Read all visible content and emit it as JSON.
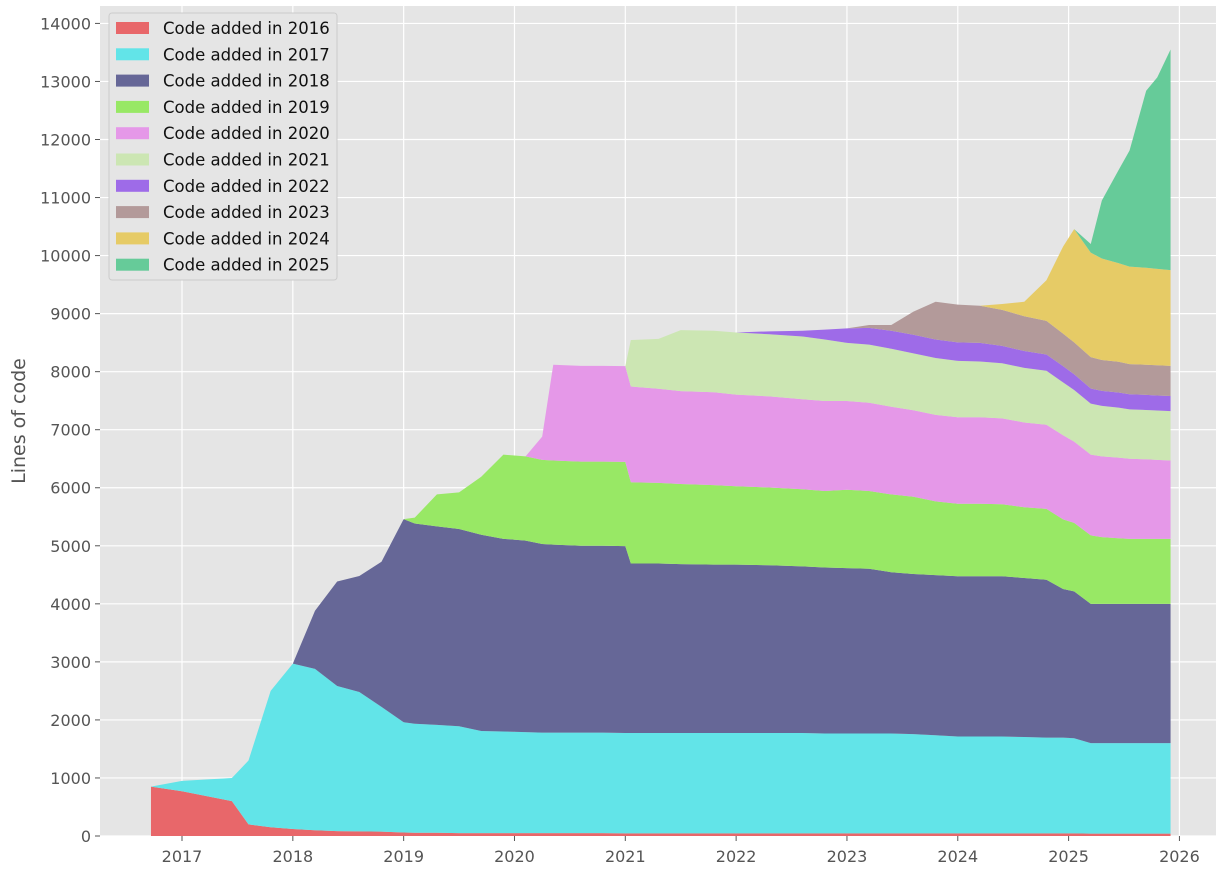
{
  "chart_data": {
    "type": "area",
    "stacked": true,
    "title": "",
    "xlabel": "",
    "ylabel": "Lines of code",
    "xlim": [
      2016.26,
      2026.33
    ],
    "ylim": [
      0,
      14300
    ],
    "x_ticks": [
      "2017",
      "2018",
      "2019",
      "2020",
      "2021",
      "2022",
      "2023",
      "2024",
      "2025",
      "2026"
    ],
    "y_ticks": [
      0,
      1000,
      2000,
      3000,
      4000,
      5000,
      6000,
      7000,
      8000,
      9000,
      10000,
      11000,
      12000,
      13000,
      14000
    ],
    "grid": true,
    "legend_position": "top-left",
    "background": "#e5e5e5",
    "x": [
      2016.72,
      2017.0,
      2017.45,
      2017.6,
      2017.8,
      2018.0,
      2018.2,
      2018.4,
      2018.6,
      2018.8,
      2019.0,
      2019.1,
      2019.3,
      2019.5,
      2019.7,
      2019.9,
      2020.1,
      2020.25,
      2020.35,
      2020.6,
      2020.8,
      2021.0,
      2021.05,
      2021.3,
      2021.5,
      2021.8,
      2022.0,
      2022.3,
      2022.6,
      2022.8,
      2023.0,
      2023.2,
      2023.4,
      2023.6,
      2023.8,
      2024.0,
      2024.2,
      2024.4,
      2024.6,
      2024.8,
      2024.95,
      2025.05,
      2025.2,
      2025.3,
      2025.45,
      2025.55,
      2025.7,
      2025.8,
      2025.92
    ],
    "series": [
      {
        "name": "Code added in 2016",
        "color": "#e8676a",
        "values": [
          850,
          770,
          600,
          200,
          150,
          120,
          100,
          85,
          80,
          75,
          60,
          55,
          55,
          50,
          50,
          50,
          50,
          50,
          50,
          50,
          50,
          45,
          45,
          45,
          45,
          45,
          45,
          45,
          45,
          45,
          45,
          45,
          45,
          45,
          45,
          45,
          45,
          45,
          45,
          45,
          45,
          45,
          40,
          40,
          40,
          40,
          40,
          40,
          40
        ]
      },
      {
        "name": "Code added in 2017",
        "color": "#62e4e8",
        "values": [
          0,
          180,
          400,
          1100,
          2350,
          2850,
          2780,
          2500,
          2400,
          2150,
          1900,
          1880,
          1860,
          1840,
          1760,
          1750,
          1740,
          1730,
          1730,
          1730,
          1730,
          1730,
          1730,
          1730,
          1730,
          1730,
          1730,
          1730,
          1730,
          1720,
          1720,
          1720,
          1720,
          1710,
          1690,
          1670,
          1670,
          1670,
          1660,
          1650,
          1650,
          1640,
          1560,
          1560,
          1560,
          1560,
          1560,
          1560,
          1560
        ]
      },
      {
        "name": "Code added in 2018",
        "color": "#666797",
        "values": [
          0,
          0,
          0,
          0,
          0,
          0,
          1000,
          1800,
          2000,
          2500,
          3500,
          3450,
          3420,
          3400,
          3380,
          3320,
          3300,
          3250,
          3240,
          3220,
          3220,
          3220,
          2920,
          2920,
          2910,
          2900,
          2900,
          2890,
          2870,
          2860,
          2850,
          2840,
          2780,
          2760,
          2760,
          2760,
          2760,
          2760,
          2740,
          2720,
          2560,
          2530,
          2400,
          2400,
          2400,
          2400,
          2400,
          2400,
          2400
        ]
      },
      {
        "name": "Code added in 2019",
        "color": "#98e865",
        "values": [
          0,
          0,
          0,
          0,
          0,
          0,
          0,
          0,
          0,
          0,
          0,
          100,
          550,
          630,
          1000,
          1450,
          1450,
          1450,
          1450,
          1450,
          1450,
          1450,
          1400,
          1390,
          1380,
          1370,
          1350,
          1340,
          1330,
          1320,
          1350,
          1340,
          1340,
          1330,
          1270,
          1250,
          1250,
          1240,
          1220,
          1220,
          1200,
          1180,
          1180,
          1150,
          1130,
          1120,
          1120,
          1120,
          1120
        ]
      },
      {
        "name": "Code added in 2020",
        "color": "#e598e8",
        "values": [
          0,
          0,
          0,
          0,
          0,
          0,
          0,
          0,
          0,
          0,
          0,
          0,
          0,
          0,
          0,
          0,
          0,
          400,
          1650,
          1650,
          1650,
          1650,
          1650,
          1620,
          1600,
          1600,
          1580,
          1570,
          1550,
          1550,
          1530,
          1520,
          1510,
          1490,
          1490,
          1490,
          1490,
          1480,
          1460,
          1450,
          1450,
          1400,
          1390,
          1390,
          1390,
          1380,
          1370,
          1360,
          1350
        ]
      },
      {
        "name": "Code added in 2021",
        "color": "#cce6b3",
        "values": [
          0,
          0,
          0,
          0,
          0,
          0,
          0,
          0,
          0,
          0,
          0,
          0,
          0,
          0,
          0,
          0,
          0,
          0,
          0,
          0,
          0,
          0,
          800,
          860,
          1050,
          1060,
          1070,
          1070,
          1080,
          1060,
          1000,
          1000,
          1000,
          980,
          980,
          970,
          960,
          950,
          940,
          930,
          910,
          890,
          880,
          870,
          860,
          850,
          850,
          850,
          850
        ]
      },
      {
        "name": "Code added in 2022",
        "color": "#9e6be8",
        "values": [
          0,
          0,
          0,
          0,
          0,
          0,
          0,
          0,
          0,
          0,
          0,
          0,
          0,
          0,
          0,
          0,
          0,
          0,
          0,
          0,
          0,
          0,
          0,
          0,
          0,
          0,
          0,
          50,
          100,
          170,
          250,
          290,
          310,
          320,
          320,
          320,
          320,
          300,
          290,
          280,
          280,
          270,
          260,
          260,
          260,
          260,
          260,
          260,
          260
        ]
      },
      {
        "name": "Code added in 2023",
        "color": "#b39a9a",
        "values": [
          0,
          0,
          0,
          0,
          0,
          0,
          0,
          0,
          0,
          0,
          0,
          0,
          0,
          0,
          0,
          0,
          0,
          0,
          0,
          0,
          0,
          0,
          0,
          0,
          0,
          0,
          0,
          0,
          0,
          0,
          0,
          50,
          100,
          400,
          650,
          650,
          640,
          620,
          600,
          580,
          560,
          550,
          540,
          530,
          530,
          520,
          520,
          520,
          520
        ]
      },
      {
        "name": "Code added in 2024",
        "color": "#e6cb66",
        "values": [
          0,
          0,
          0,
          0,
          0,
          0,
          0,
          0,
          0,
          0,
          0,
          0,
          0,
          0,
          0,
          0,
          0,
          0,
          0,
          0,
          0,
          0,
          0,
          0,
          0,
          0,
          0,
          0,
          0,
          0,
          0,
          0,
          0,
          0,
          0,
          0,
          0,
          100,
          250,
          700,
          1500,
          1950,
          1800,
          1750,
          1700,
          1680,
          1670,
          1660,
          1650
        ]
      },
      {
        "name": "Code added in 2025",
        "color": "#66cb99",
        "values": [
          0,
          0,
          0,
          0,
          0,
          0,
          0,
          0,
          0,
          0,
          0,
          0,
          0,
          0,
          0,
          0,
          0,
          0,
          0,
          0,
          0,
          0,
          0,
          0,
          0,
          0,
          0,
          0,
          0,
          0,
          0,
          0,
          0,
          0,
          0,
          0,
          0,
          0,
          0,
          0,
          0,
          0,
          150,
          1000,
          1600,
          2000,
          3050,
          3300,
          3800
        ]
      }
    ]
  }
}
